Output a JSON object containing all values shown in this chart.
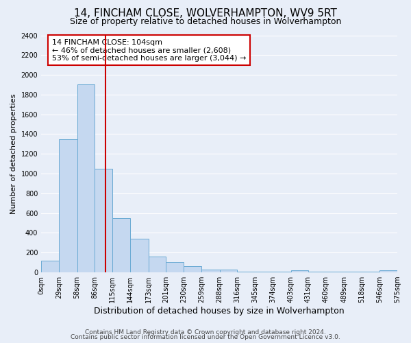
{
  "title": "14, FINCHAM CLOSE, WOLVERHAMPTON, WV9 5RT",
  "subtitle": "Size of property relative to detached houses in Wolverhampton",
  "xlabel": "Distribution of detached houses by size in Wolverhampton",
  "ylabel": "Number of detached properties",
  "bin_edges": [
    0,
    29,
    58,
    86,
    115,
    144,
    173,
    201,
    230,
    259,
    288,
    316,
    345,
    374,
    403,
    431,
    460,
    489,
    518,
    546,
    575
  ],
  "bar_heights": [
    120,
    1350,
    1900,
    1050,
    550,
    340,
    160,
    105,
    60,
    30,
    25,
    10,
    5,
    5,
    20,
    5,
    5,
    5,
    5,
    20
  ],
  "bar_color": "#c5d8f0",
  "bar_edge_color": "#6aaad4",
  "vline_x": 104,
  "vline_color": "#cc0000",
  "ylim": [
    0,
    2400
  ],
  "yticks": [
    0,
    200,
    400,
    600,
    800,
    1000,
    1200,
    1400,
    1600,
    1800,
    2000,
    2200,
    2400
  ],
  "annotation_title": "14 FINCHAM CLOSE: 104sqm",
  "annotation_line1": "← 46% of detached houses are smaller (2,608)",
  "annotation_line2": "53% of semi-detached houses are larger (3,044) →",
  "annotation_box_color": "#ffffff",
  "annotation_box_edge": "#cc0000",
  "footer1": "Contains HM Land Registry data © Crown copyright and database right 2024.",
  "footer2": "Contains public sector information licensed under the Open Government Licence v3.0.",
  "tick_labels": [
    "0sqm",
    "29sqm",
    "58sqm",
    "86sqm",
    "115sqm",
    "144sqm",
    "173sqm",
    "201sqm",
    "230sqm",
    "259sqm",
    "288sqm",
    "316sqm",
    "345sqm",
    "374sqm",
    "403sqm",
    "431sqm",
    "460sqm",
    "489sqm",
    "518sqm",
    "546sqm",
    "575sqm"
  ],
  "background_color": "#e8eef8",
  "grid_color": "#ffffff",
  "title_fontsize": 11,
  "subtitle_fontsize": 9,
  "xlabel_fontsize": 9,
  "ylabel_fontsize": 8,
  "tick_fontsize": 7,
  "annotation_fontsize": 8,
  "footer_fontsize": 6.5
}
